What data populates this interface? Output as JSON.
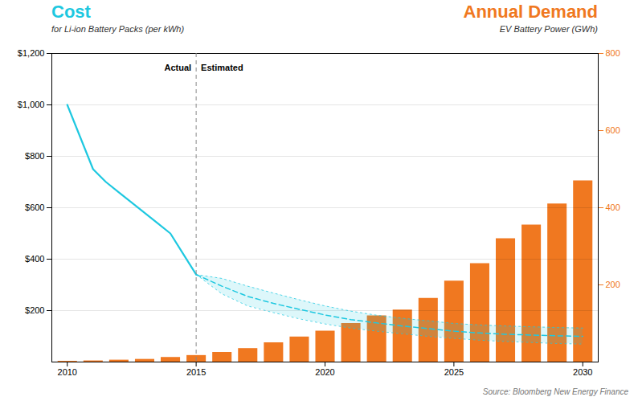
{
  "chart_data": {
    "type": "combo",
    "title": "Cost",
    "subtitle": "for Li-ion Battery Packs (per kWh)",
    "annotations": [
      "Annual Demand",
      "EV Battery Power (GWh)"
    ],
    "source": "Source: Bloomberg New Energy Finance",
    "divider": {
      "x": 2015,
      "left_label": "Actual",
      "right_label": "Estimated"
    },
    "series": [
      {
        "type": "bar",
        "axis": "y2",
        "color": "#f07820",
        "x": [
          2010,
          2011,
          2012,
          2013,
          2014,
          2015,
          2016,
          2017,
          2018,
          2019,
          2020,
          2021,
          2022,
          2023,
          2024,
          2025,
          2026,
          2027,
          2028,
          2029,
          2030
        ],
        "values": [
          2,
          3,
          5,
          7,
          12,
          17,
          25,
          35,
          50,
          65,
          80,
          100,
          120,
          135,
          165,
          210,
          255,
          320,
          355,
          410,
          470
        ]
      },
      {
        "type": "line",
        "color": "#1ec8e0",
        "line_style": "solid",
        "x": [
          2010,
          2011,
          2011.5,
          2012,
          2013,
          2013.5,
          2014,
          2014.5,
          2015
        ],
        "values": [
          1000,
          750,
          700,
          660,
          580,
          540,
          500,
          420,
          340
        ]
      },
      {
        "type": "band",
        "color": "#1ec8e0",
        "line_style": "dotted",
        "x": [
          2015,
          2016,
          2017,
          2018,
          2019,
          2020,
          2021,
          2022,
          2023,
          2024,
          2025,
          2026,
          2027,
          2028,
          2029,
          2030
        ],
        "lower": [
          340,
          265,
          218,
          192,
          168,
          148,
          132,
          120,
          110,
          100,
          92,
          85,
          80,
          76,
          72,
          70
        ],
        "upper": [
          340,
          325,
          295,
          268,
          242,
          218,
          198,
          182,
          170,
          160,
          150,
          144,
          140,
          137,
          134,
          132
        ]
      },
      {
        "type": "line",
        "color": "#1ec8e0",
        "line_style": "dashed",
        "x": [
          2015,
          2016,
          2017,
          2018,
          2019,
          2020,
          2021,
          2022,
          2023,
          2024,
          2025,
          2026,
          2027,
          2028,
          2029,
          2030
        ],
        "values": [
          340,
          295,
          255,
          228,
          205,
          183,
          165,
          152,
          140,
          130,
          120,
          113,
          108,
          105,
          102,
          100
        ]
      }
    ],
    "xlim": [
      2009.4,
      2030.6
    ],
    "xticks": [
      2010,
      2015,
      2020,
      2025,
      2030
    ],
    "ylim": [
      0,
      1200
    ],
    "yticks": [
      {
        "value": 200,
        "label": "$200"
      },
      {
        "value": 400,
        "label": "$400"
      },
      {
        "value": 600,
        "label": "$600"
      },
      {
        "value": 800,
        "label": "$800"
      },
      {
        "value": 1000,
        "label": "$1,000"
      },
      {
        "value": 1200,
        "label": "$1,200"
      }
    ],
    "y2lim": [
      0,
      800
    ],
    "y2ticks": [
      200,
      400,
      600,
      800
    ],
    "grid": true,
    "legend": false
  }
}
